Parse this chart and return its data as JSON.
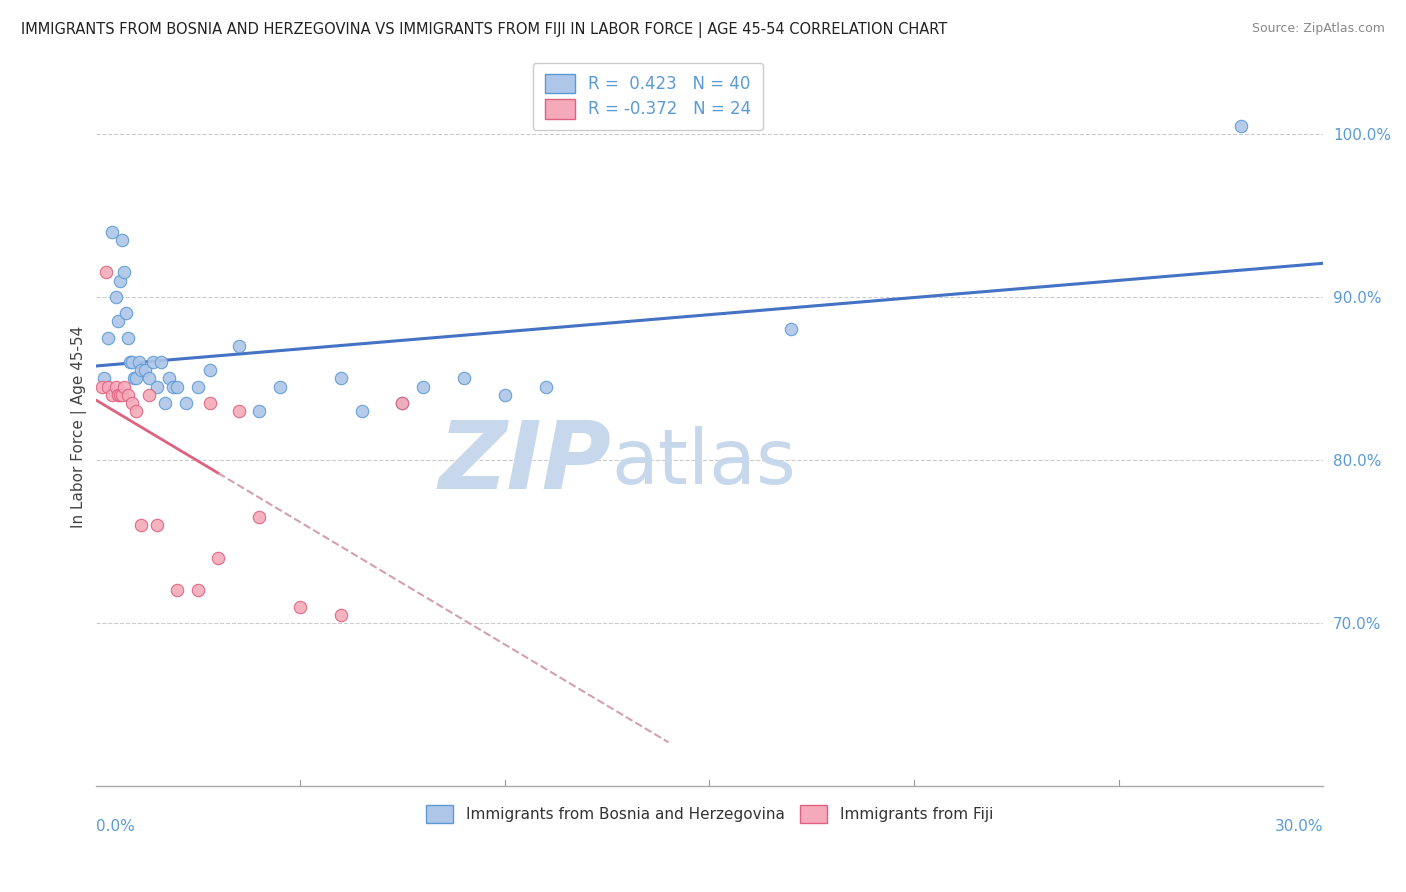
{
  "title": "IMMIGRANTS FROM BOSNIA AND HERZEGOVINA VS IMMIGRANTS FROM FIJI IN LABOR FORCE | AGE 45-54 CORRELATION CHART",
  "source": "Source: ZipAtlas.com",
  "xmin": 0.0,
  "xmax": 30.0,
  "ymin": 60.0,
  "ymax": 104.0,
  "ytick_vals": [
    70,
    80,
    90,
    100
  ],
  "ytick_labels": [
    "70.0%",
    "80.0%",
    "90.0%",
    "100.0%"
  ],
  "bosnia_R": 0.423,
  "bosnia_N": 40,
  "fiji_R": -0.372,
  "fiji_N": 24,
  "bosnia_color": "#aec6e8",
  "fiji_color": "#f4aab8",
  "bosnia_edge_color": "#5b9bd5",
  "fiji_edge_color": "#e06080",
  "bosnia_line_color": "#4472c4",
  "fiji_line_color_solid": "#e06080",
  "fiji_line_color_dash": "#d4a0b0",
  "watermark_zip": "ZIP",
  "watermark_atlas": "atlas",
  "watermark_color": "#c8d8ec",
  "legend_R1": "R =  0.423",
  "legend_N1": "N = 40",
  "legend_R2": "R = -0.372",
  "legend_N2": "N = 24",
  "bosnia_scatter_x": [
    0.2,
    0.3,
    0.4,
    0.5,
    0.55,
    0.6,
    0.65,
    0.7,
    0.75,
    0.8,
    0.85,
    0.9,
    0.95,
    1.0,
    1.05,
    1.1,
    1.2,
    1.3,
    1.4,
    1.5,
    1.6,
    1.7,
    1.8,
    1.9,
    2.0,
    2.2,
    2.5,
    2.8,
    3.5,
    4.0,
    4.5,
    6.0,
    6.5,
    7.5,
    8.0,
    9.0,
    10.0,
    11.0,
    17.0,
    28.0
  ],
  "bosnia_scatter_y": [
    85.0,
    87.5,
    94.0,
    90.0,
    88.5,
    91.0,
    93.5,
    91.5,
    89.0,
    87.5,
    86.0,
    86.0,
    85.0,
    85.0,
    86.0,
    85.5,
    85.5,
    85.0,
    86.0,
    84.5,
    86.0,
    83.5,
    85.0,
    84.5,
    84.5,
    83.5,
    84.5,
    85.5,
    87.0,
    83.0,
    84.5,
    85.0,
    83.0,
    83.5,
    84.5,
    85.0,
    84.0,
    84.5,
    88.0,
    100.5
  ],
  "fiji_scatter_x": [
    0.15,
    0.25,
    0.3,
    0.4,
    0.5,
    0.55,
    0.6,
    0.65,
    0.7,
    0.8,
    0.9,
    1.0,
    1.1,
    1.3,
    1.5,
    2.0,
    2.5,
    2.8,
    3.0,
    3.5,
    4.0,
    5.0,
    6.0,
    7.5
  ],
  "fiji_scatter_y": [
    84.5,
    91.5,
    84.5,
    84.0,
    84.5,
    84.0,
    84.0,
    84.0,
    84.5,
    84.0,
    83.5,
    83.0,
    76.0,
    84.0,
    76.0,
    72.0,
    72.0,
    83.5,
    74.0,
    83.0,
    76.5,
    71.0,
    70.5,
    83.5
  ]
}
